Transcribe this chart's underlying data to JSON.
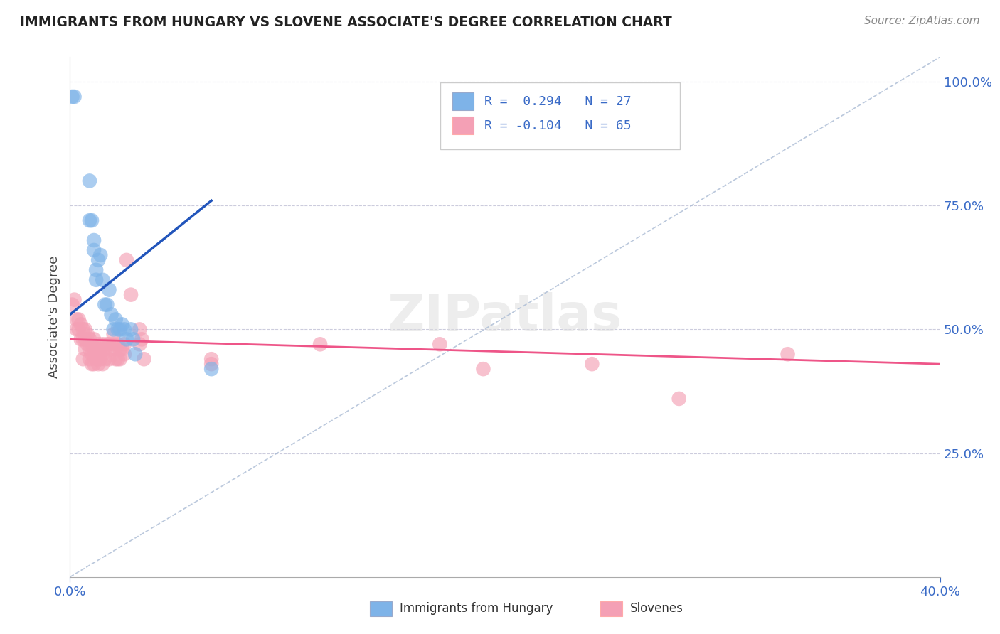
{
  "title": "IMMIGRANTS FROM HUNGARY VS SLOVENE ASSOCIATE'S DEGREE CORRELATION CHART",
  "source_text": "Source: ZipAtlas.com",
  "ylabel": "Associate's Degree",
  "xlim": [
    0.0,
    0.4
  ],
  "ylim": [
    0.0,
    1.05
  ],
  "yticks": [
    0.25,
    0.5,
    0.75,
    1.0
  ],
  "ytick_labels": [
    "25.0%",
    "50.0%",
    "75.0%",
    "100.0%"
  ],
  "blue_color": "#7EB3E8",
  "pink_color": "#F4A0B5",
  "blue_line_color": "#2255BB",
  "pink_line_color": "#EE5588",
  "ref_line_color": "#AABBD4",
  "grid_color": "#CCCCDD",
  "blue_dots": [
    [
      0.001,
      0.97
    ],
    [
      0.002,
      0.97
    ],
    [
      0.009,
      0.8
    ],
    [
      0.009,
      0.72
    ],
    [
      0.01,
      0.72
    ],
    [
      0.011,
      0.68
    ],
    [
      0.011,
      0.66
    ],
    [
      0.012,
      0.62
    ],
    [
      0.012,
      0.6
    ],
    [
      0.013,
      0.64
    ],
    [
      0.014,
      0.65
    ],
    [
      0.015,
      0.6
    ],
    [
      0.016,
      0.55
    ],
    [
      0.017,
      0.55
    ],
    [
      0.018,
      0.58
    ],
    [
      0.019,
      0.53
    ],
    [
      0.02,
      0.5
    ],
    [
      0.021,
      0.52
    ],
    [
      0.022,
      0.5
    ],
    [
      0.023,
      0.5
    ],
    [
      0.024,
      0.51
    ],
    [
      0.025,
      0.5
    ],
    [
      0.026,
      0.48
    ],
    [
      0.028,
      0.5
    ],
    [
      0.029,
      0.48
    ],
    [
      0.03,
      0.45
    ],
    [
      0.065,
      0.42
    ]
  ],
  "pink_dots": [
    [
      0.001,
      0.55
    ],
    [
      0.002,
      0.56
    ],
    [
      0.003,
      0.52
    ],
    [
      0.003,
      0.5
    ],
    [
      0.004,
      0.52
    ],
    [
      0.004,
      0.5
    ],
    [
      0.005,
      0.51
    ],
    [
      0.005,
      0.48
    ],
    [
      0.006,
      0.5
    ],
    [
      0.006,
      0.48
    ],
    [
      0.006,
      0.44
    ],
    [
      0.007,
      0.5
    ],
    [
      0.007,
      0.48
    ],
    [
      0.007,
      0.46
    ],
    [
      0.008,
      0.49
    ],
    [
      0.008,
      0.47
    ],
    [
      0.009,
      0.48
    ],
    [
      0.009,
      0.46
    ],
    [
      0.009,
      0.44
    ],
    [
      0.01,
      0.47
    ],
    [
      0.01,
      0.45
    ],
    [
      0.01,
      0.43
    ],
    [
      0.011,
      0.48
    ],
    [
      0.011,
      0.45
    ],
    [
      0.011,
      0.43
    ],
    [
      0.012,
      0.46
    ],
    [
      0.012,
      0.44
    ],
    [
      0.013,
      0.47
    ],
    [
      0.013,
      0.45
    ],
    [
      0.013,
      0.43
    ],
    [
      0.014,
      0.46
    ],
    [
      0.014,
      0.44
    ],
    [
      0.015,
      0.47
    ],
    [
      0.015,
      0.45
    ],
    [
      0.015,
      0.43
    ],
    [
      0.016,
      0.46
    ],
    [
      0.016,
      0.44
    ],
    [
      0.017,
      0.47
    ],
    [
      0.018,
      0.47
    ],
    [
      0.018,
      0.44
    ],
    [
      0.019,
      0.46
    ],
    [
      0.02,
      0.49
    ],
    [
      0.02,
      0.47
    ],
    [
      0.021,
      0.46
    ],
    [
      0.021,
      0.44
    ],
    [
      0.022,
      0.47
    ],
    [
      0.022,
      0.44
    ],
    [
      0.023,
      0.46
    ],
    [
      0.023,
      0.44
    ],
    [
      0.024,
      0.46
    ],
    [
      0.025,
      0.47
    ],
    [
      0.025,
      0.45
    ],
    [
      0.026,
      0.64
    ],
    [
      0.028,
      0.57
    ],
    [
      0.032,
      0.5
    ],
    [
      0.032,
      0.47
    ],
    [
      0.033,
      0.48
    ],
    [
      0.034,
      0.44
    ],
    [
      0.065,
      0.43
    ],
    [
      0.065,
      0.44
    ],
    [
      0.115,
      0.47
    ],
    [
      0.17,
      0.47
    ],
    [
      0.19,
      0.42
    ],
    [
      0.24,
      0.43
    ],
    [
      0.28,
      0.36
    ],
    [
      0.33,
      0.45
    ]
  ],
  "ref_line": [
    [
      0.0,
      0.0
    ],
    [
      0.4,
      1.05
    ]
  ],
  "blue_reg_points": [
    [
      0.0,
      0.53
    ],
    [
      0.065,
      0.76
    ]
  ],
  "pink_reg_points": [
    [
      0.0,
      0.48
    ],
    [
      0.4,
      0.43
    ]
  ]
}
